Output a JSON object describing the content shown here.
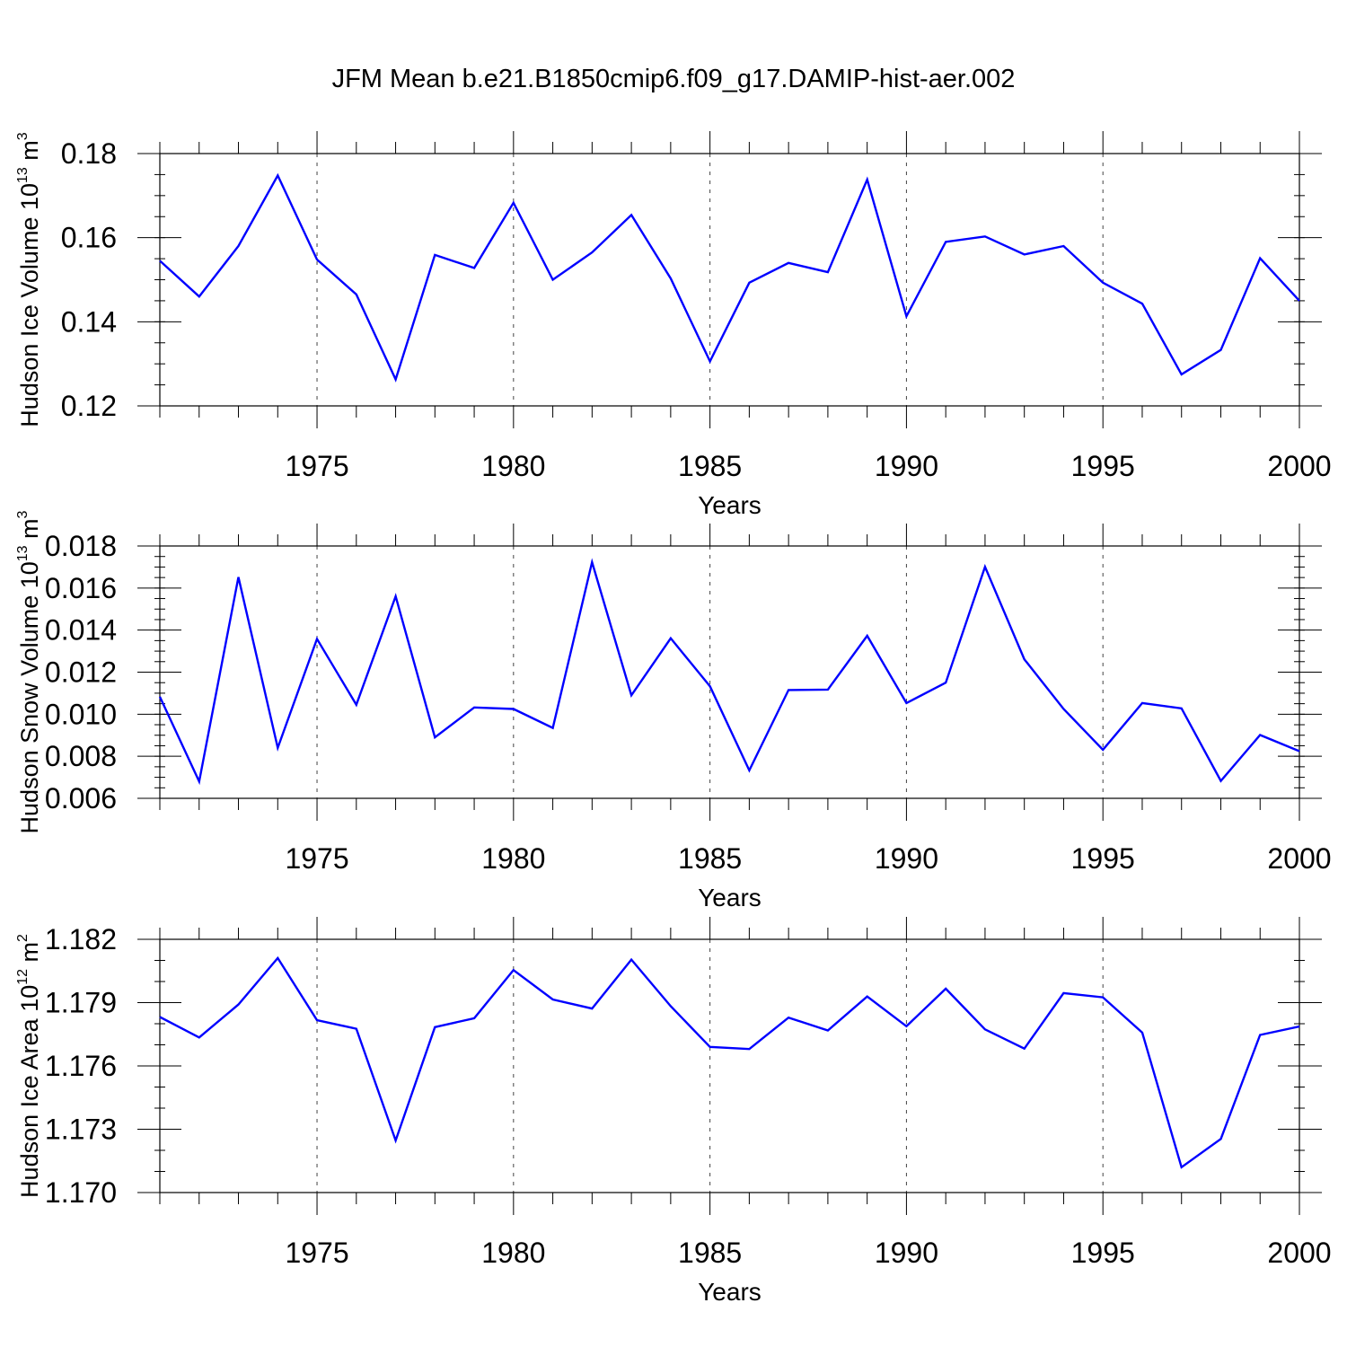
{
  "title": "JFM Mean b.e21.B1850cmip6.f09_g17.DAMIP-hist-aer.002",
  "chart_data": [
    {
      "type": "line",
      "xlabel": "Years",
      "ylabel": {
        "base": "Hudson Ice Volume 10",
        "exp": "13",
        "unit": " m",
        "unit_exp": "3"
      },
      "xlim": [
        1971,
        2000
      ],
      "ylim": [
        0.12,
        0.18
      ],
      "x_ticks": [
        1975,
        1980,
        1985,
        1990,
        1995,
        2000
      ],
      "y_ticks": [
        "0.12",
        "0.14",
        "0.16",
        "0.18"
      ],
      "y_tick_values": [
        0.12,
        0.14,
        0.16,
        0.18
      ],
      "y_minor_step": 0.005,
      "grid": "dashed vertical at major x ticks",
      "line_color": "#0000ff",
      "series": [
        {
          "name": "Hudson Ice Volume",
          "x": [
            1971,
            1972,
            1973,
            1974,
            1975,
            1976,
            1977,
            1978,
            1979,
            1980,
            1981,
            1982,
            1983,
            1984,
            1985,
            1986,
            1987,
            1988,
            1989,
            1990,
            1991,
            1992,
            1993,
            1994,
            1995,
            1996,
            1997,
            1998,
            1999,
            2000
          ],
          "values": [
            0.1545,
            0.146,
            0.158,
            0.1748,
            0.1548,
            0.1465,
            0.1263,
            0.1559,
            0.1528,
            0.1683,
            0.15,
            0.1565,
            0.1654,
            0.1503,
            0.1306,
            0.1493,
            0.154,
            0.1518,
            0.1738,
            0.1413,
            0.159,
            0.1603,
            0.156,
            0.158,
            0.1493,
            0.1443,
            0.1275,
            0.1333,
            0.1551,
            0.145
          ]
        }
      ]
    },
    {
      "type": "line",
      "xlabel": "Years",
      "ylabel": {
        "base": "Hudson Snow Volume 10",
        "exp": "13",
        "unit": " m",
        "unit_exp": "3"
      },
      "xlim": [
        1971,
        2000
      ],
      "ylim": [
        0.006,
        0.018
      ],
      "x_ticks": [
        1975,
        1980,
        1985,
        1990,
        1995,
        2000
      ],
      "y_ticks": [
        "0.006",
        "0.008",
        "0.010",
        "0.012",
        "0.014",
        "0.016",
        "0.018"
      ],
      "y_tick_values": [
        0.006,
        0.008,
        0.01,
        0.012,
        0.014,
        0.016,
        0.018
      ],
      "y_minor_step": 0.0005,
      "grid": "dashed vertical at major x ticks",
      "line_color": "#0000ff",
      "series": [
        {
          "name": "Hudson Snow Volume",
          "x": [
            1971,
            1972,
            1973,
            1974,
            1975,
            1976,
            1977,
            1978,
            1979,
            1980,
            1981,
            1982,
            1983,
            1984,
            1985,
            1986,
            1987,
            1988,
            1989,
            1990,
            1991,
            1992,
            1993,
            1994,
            1995,
            1996,
            1997,
            1998,
            1999,
            2000
          ],
          "values": [
            0.01083,
            0.0068,
            0.01652,
            0.0084,
            0.01358,
            0.01045,
            0.01561,
            0.0089,
            0.01032,
            0.01025,
            0.00935,
            0.01723,
            0.0109,
            0.01361,
            0.01133,
            0.00733,
            0.01115,
            0.01117,
            0.01373,
            0.01053,
            0.0115,
            0.01701,
            0.01261,
            0.01025,
            0.00831,
            0.01053,
            0.01028,
            0.00683,
            0.00901,
            0.00824
          ]
        }
      ]
    },
    {
      "type": "line",
      "xlabel": "Years",
      "ylabel": {
        "base": "Hudson Ice Area 10",
        "exp": "12",
        "unit": " m",
        "unit_exp": "2"
      },
      "xlim": [
        1971,
        2000
      ],
      "ylim": [
        1.17,
        1.182
      ],
      "x_ticks": [
        1975,
        1980,
        1985,
        1990,
        1995,
        2000
      ],
      "y_ticks": [
        "1.170",
        "1.173",
        "1.176",
        "1.179",
        "1.182"
      ],
      "y_tick_values": [
        1.17,
        1.173,
        1.176,
        1.179,
        1.182
      ],
      "y_minor_step": 0.001,
      "grid": "dashed vertical at major x ticks",
      "line_color": "#0000ff",
      "series": [
        {
          "name": "Hudson Ice Area",
          "x": [
            1971,
            1972,
            1973,
            1974,
            1975,
            1976,
            1977,
            1978,
            1979,
            1980,
            1981,
            1982,
            1983,
            1984,
            1985,
            1986,
            1987,
            1988,
            1989,
            1990,
            1991,
            1992,
            1993,
            1994,
            1995,
            1996,
            1997,
            1998,
            1999,
            2000
          ],
          "values": [
            1.17832,
            1.17735,
            1.17891,
            1.18111,
            1.17817,
            1.17776,
            1.17247,
            1.17784,
            1.17826,
            1.18054,
            1.17915,
            1.17872,
            1.18104,
            1.17883,
            1.1769,
            1.1768,
            1.17829,
            1.17768,
            1.17929,
            1.17788,
            1.17966,
            1.17773,
            1.17682,
            1.17945,
            1.17925,
            1.17758,
            1.1712,
            1.17254,
            1.17747,
            1.17787
          ]
        }
      ]
    }
  ]
}
